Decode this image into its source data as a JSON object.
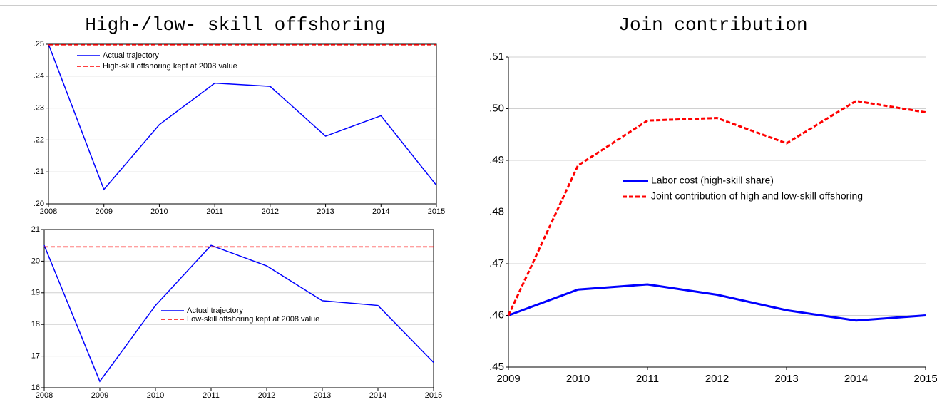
{
  "chart_data": [
    {
      "type": "line",
      "title": "High-/low- skill offshoring",
      "categories": [
        "2008",
        "2009",
        "2010",
        "2011",
        "2012",
        "2013",
        "2014",
        "2015"
      ],
      "ylim": [
        0.2,
        0.25
      ],
      "yticks": [
        {
          "value": 0.2,
          "label": ".20"
        },
        {
          "value": 0.21,
          "label": ".21"
        },
        {
          "value": 0.22,
          "label": ".22"
        },
        {
          "value": 0.23,
          "label": ".23"
        },
        {
          "value": 0.24,
          "label": ".24"
        },
        {
          "value": 0.25,
          "label": ".25"
        }
      ],
      "grid": true,
      "series": [
        {
          "name": "Actual trajectory",
          "color": "#0000ff",
          "dash": "solid",
          "values": [
            0.25,
            0.2045,
            0.2248,
            0.2378,
            0.2368,
            0.2212,
            0.2276,
            0.2058
          ]
        },
        {
          "name": "High-skill offshoring kept at 2008 value",
          "color": "#ff0000",
          "dash": "dashed",
          "values": [
            0.2498,
            0.2498,
            0.2498,
            0.2498,
            0.2498,
            0.2498,
            0.2498,
            0.2498
          ]
        }
      ]
    },
    {
      "type": "line",
      "categories": [
        "2008",
        "2009",
        "2010",
        "2011",
        "2012",
        "2013",
        "2014",
        "2015"
      ],
      "ylim": [
        16,
        21
      ],
      "yticks": [
        16,
        17,
        18,
        19,
        20,
        21
      ],
      "grid": true,
      "series": [
        {
          "name": "Actual trajectory",
          "color": "#0000ff",
          "dash": "solid",
          "values": [
            20.5,
            16.2,
            18.6,
            20.5,
            19.85,
            18.75,
            18.6,
            16.8
          ]
        },
        {
          "name": "Low-skill offshoring kept at 2008 value",
          "color": "#ff0000",
          "dash": "dashed",
          "values": [
            20.45,
            20.45,
            20.45,
            20.45,
            20.45,
            20.45,
            20.45,
            20.45
          ]
        }
      ]
    },
    {
      "type": "line",
      "title": "Join contribution",
      "categories": [
        "2009",
        "2010",
        "2011",
        "2012",
        "2013",
        "2014",
        "2015"
      ],
      "ylim": [
        0.45,
        0.51
      ],
      "yticks": [
        {
          "value": 0.45,
          "label": ".45"
        },
        {
          "value": 0.46,
          "label": ".46"
        },
        {
          "value": 0.47,
          "label": ".47"
        },
        {
          "value": 0.48,
          "label": ".48"
        },
        {
          "value": 0.49,
          "label": ".49"
        },
        {
          "value": 0.5,
          "label": ".50"
        },
        {
          "value": 0.51,
          "label": ".51"
        }
      ],
      "grid": true,
      "series": [
        {
          "name": "Labor cost (high-skill share)",
          "color": "#0000ff",
          "dash": "solid",
          "values": [
            0.46,
            0.465,
            0.466,
            0.464,
            0.461,
            0.459,
            0.46
          ]
        },
        {
          "name": "Joint contribution of high and low-skill offshoring",
          "color": "#ff0000",
          "dash": "dashed",
          "values": [
            0.46,
            0.489,
            0.4977,
            0.4982,
            0.4933,
            0.5015,
            0.4993
          ]
        }
      ]
    }
  ]
}
